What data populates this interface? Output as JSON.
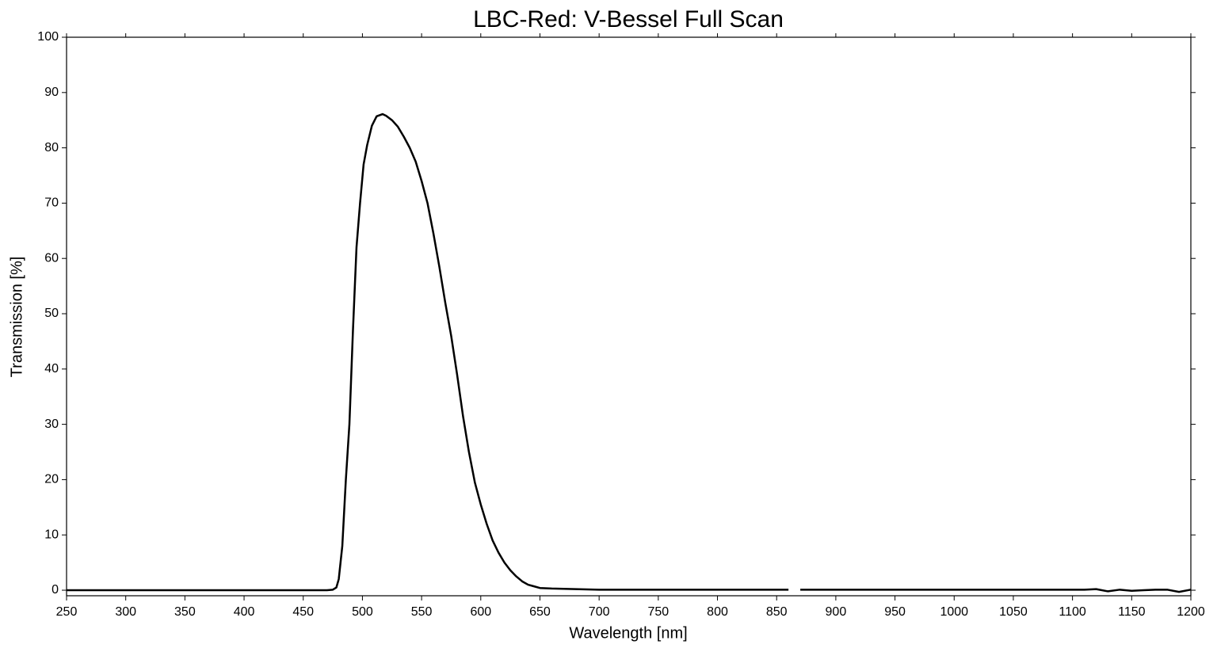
{
  "chart_data": {
    "type": "line",
    "title": "LBC-Red: V-Bessel Full Scan",
    "xlabel": "Wavelength [nm]",
    "ylabel": "Transmission [%]",
    "xlim": [
      250,
      1200
    ],
    "ylim": [
      -1,
      100
    ],
    "xticks": [
      250,
      300,
      350,
      400,
      450,
      500,
      550,
      600,
      650,
      700,
      750,
      800,
      850,
      900,
      950,
      1000,
      1050,
      1100,
      1150,
      1200
    ],
    "yticks": [
      0,
      10,
      20,
      30,
      40,
      50,
      60,
      70,
      80,
      90,
      100
    ],
    "grid": false,
    "x": [
      250,
      260,
      270,
      280,
      290,
      300,
      310,
      320,
      330,
      340,
      350,
      360,
      370,
      380,
      390,
      400,
      410,
      420,
      430,
      440,
      450,
      460,
      470,
      475,
      478,
      480,
      483,
      486,
      489,
      492,
      495,
      498,
      501,
      504,
      508,
      512,
      517,
      520,
      525,
      530,
      535,
      540,
      545,
      550,
      555,
      560,
      565,
      570,
      575,
      580,
      585,
      590,
      595,
      600,
      605,
      610,
      615,
      620,
      625,
      630,
      635,
      640,
      645,
      650,
      660,
      680,
      700,
      720,
      740,
      760,
      780,
      800,
      820,
      840,
      860,
      865,
      870,
      880,
      890,
      900,
      910,
      920,
      930,
      940,
      950,
      960,
      970,
      980,
      990,
      1000,
      1010,
      1020,
      1030,
      1040,
      1050,
      1060,
      1070,
      1080,
      1090,
      1100,
      1110,
      1120,
      1130,
      1140,
      1150,
      1160,
      1170,
      1180,
      1190,
      1200
    ],
    "series": [
      {
        "name": "V-Bessel",
        "color": "#000000",
        "values": [
          0,
          0,
          0,
          0,
          0,
          0,
          0,
          0,
          0,
          0,
          0,
          0,
          0,
          0,
          0,
          0,
          0,
          0,
          0,
          0,
          0,
          0,
          0,
          0.1,
          0.5,
          2,
          8,
          20,
          30,
          47,
          62,
          70,
          77,
          80.5,
          84,
          85.7,
          86.1,
          85.8,
          85,
          83.8,
          82,
          80,
          77.5,
          74,
          70,
          64.5,
          58.5,
          52,
          46,
          39,
          31.5,
          25,
          19.5,
          15.5,
          12,
          9,
          6.8,
          5,
          3.6,
          2.5,
          1.6,
          1,
          0.7,
          0.4,
          0.3,
          0.2,
          0.1,
          0.1,
          0.1,
          0.1,
          0.1,
          0.1,
          0.1,
          0.1,
          0.1,
          null,
          0.1,
          0.1,
          0.1,
          0.1,
          0.1,
          0.1,
          0.1,
          0.1,
          0.1,
          0.1,
          0.1,
          0.1,
          0.1,
          0.1,
          0.1,
          0.1,
          0.1,
          0.1,
          0.1,
          0.1,
          0.1,
          0.1,
          0.1,
          0.1,
          0.1,
          0.2,
          -0.2,
          0.1,
          -0.1,
          0,
          0.1,
          0.1,
          -0.3,
          0.1
        ]
      }
    ]
  }
}
